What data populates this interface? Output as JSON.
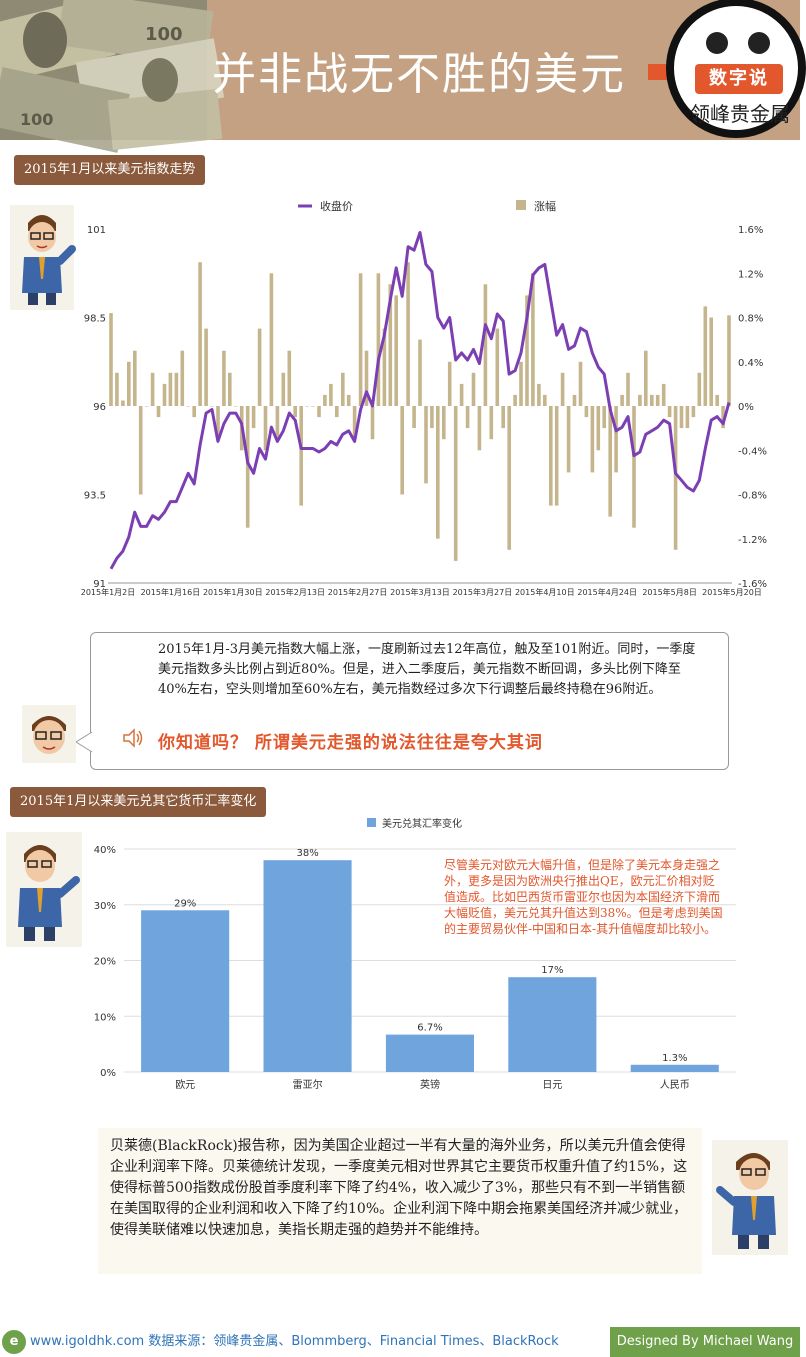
{
  "header": {
    "title": "并非战无不胜的美元",
    "badge": "数字说",
    "brand": "领峰贵金属"
  },
  "section1": {
    "label": "2015年1月以来美元指数走势"
  },
  "section2": {
    "label": "2015年1月以来美元兑其它货币汇率变化"
  },
  "note1": {
    "text": "2015年1月-3月美元指数大幅上涨，一度刷新过去12年高位，触及至101附近。同时，一季度美元指数多头比例占到近80%。但是，进入二季度后，美元指数不断回调，多头比例下降至40%左右，空头则增加至60%左右，美元指数经过多次下行调整后最终持稳在96附近。",
    "highlight": "你知道吗？ 所谓美元走强的说法往往是夸大其词"
  },
  "note2": {
    "text": "尽管美元对欧元大幅升值，但是除了美元本身走强之外，更多是因为欧洲央行推出QE，欧元汇价相对贬值造成。比如巴西货币雷亚尔也因为本国经济下滑而大幅贬值，美元兑其升值达到38%。但是考虑到美国的主要贸易伙伴-中国和日本-其升值幅度却比较小。"
  },
  "note3": {
    "text": "贝莱德(BlackRock)报告称，因为美国企业超过一半有大量的海外业务，所以美元升值会使得企业利润率下降。贝莱德统计发现，一季度美元相对世界其它主要货币权重升值了约15%，这使得标普500指数成份股首季度利率下降了约4%，收入减少了3%，那些只有不到一半销售额在美国取得的企业利润和收入下降了约10%。企业利润下降中期会拖累美国经济并减少就业，使得美联储难以快速加息，美指长期走强的趋势并不能维持。"
  },
  "footer": {
    "source": "www.igoldhk.com 数据来源：领峰贵金属、Blommberg、Financial Times、BlackRock",
    "credit": "Designed By Michael Wang"
  },
  "colors": {
    "line": "#7b3fb3",
    "bar": "#c5b58d",
    "bar2": "#6fa4dc",
    "tag": "#8b5a3c",
    "accent": "#e2572c"
  },
  "chart_data": [
    {
      "type": "line+bar",
      "legend": [
        "收盘价",
        "涨幅"
      ],
      "x_ticks": [
        "2015年1月2日",
        "2015年1月16日",
        "2015年1月30日",
        "2015年2月13日",
        "2015年2月27日",
        "2015年3月13日",
        "2015年3月27日",
        "2015年4月10日",
        "2015年4月24日",
        "2015年5月8日",
        "2015年5月20日"
      ],
      "left_axis": {
        "ticks": [
          "101",
          "98.5",
          "96",
          "93.5",
          "91"
        ],
        "ylim": [
          91,
          101
        ]
      },
      "right_axis": {
        "ticks": [
          "1.6%",
          "1.2%",
          "0.8%",
          "0.4%",
          "0%",
          "-0.4%",
          "-0.8%",
          "-1.2%",
          "-1.6%"
        ],
        "ylim": [
          -1.6,
          1.6
        ]
      },
      "close": [
        91.4,
        91.7,
        91.9,
        92.3,
        93.0,
        92.6,
        92.6,
        92.9,
        92.8,
        93.0,
        93.3,
        93.3,
        93.7,
        94.1,
        93.8,
        94.9,
        95.8,
        95.9,
        95.0,
        95.5,
        95.8,
        95.8,
        95.5,
        94.4,
        94.1,
        94.8,
        94.5,
        95.4,
        95.0,
        95.3,
        95.8,
        95.6,
        94.8,
        94.8,
        94.8,
        94.7,
        94.8,
        95.0,
        94.9,
        95.2,
        95.3,
        95.0,
        95.9,
        96.4,
        96.0,
        97.3,
        98.0,
        99.0,
        99.9,
        99.1,
        100.5,
        100.4,
        100.9,
        100.0,
        99.8,
        98.5,
        98.2,
        98.5,
        97.3,
        97.5,
        97.3,
        97.6,
        97.2,
        98.3,
        97.9,
        98.6,
        98.4,
        96.9,
        97.0,
        97.5,
        98.5,
        99.7,
        99.9,
        100.0,
        99.0,
        98.0,
        98.3,
        97.6,
        97.7,
        98.2,
        98.1,
        97.5,
        97.1,
        96.9,
        95.9,
        95.3,
        95.4,
        95.7,
        94.6,
        94.7,
        95.2,
        95.3,
        95.4,
        95.6,
        95.5,
        94.1,
        93.9,
        93.7,
        93.6,
        93.9,
        94.8,
        95.6,
        95.7,
        95.5,
        96.1
      ],
      "change": [
        0.84,
        0.3,
        0.05,
        0.4,
        0.5,
        -0.8,
        0.0,
        0.3,
        -0.1,
        0.2,
        0.3,
        0.3,
        0.5,
        0.0,
        -0.1,
        1.3,
        0.7,
        0.0,
        -0.3,
        0.5,
        0.3,
        0.0,
        -0.4,
        -1.1,
        -0.2,
        0.7,
        -0.4,
        1.2,
        -0.3,
        0.3,
        0.5,
        -0.1,
        -0.9,
        0.0,
        0.0,
        -0.1,
        0.1,
        0.2,
        -0.1,
        0.3,
        0.1,
        -0.3,
        1.2,
        0.5,
        -0.3,
        1.2,
        0.7,
        1.1,
        1.0,
        -0.8,
        1.3,
        -0.2,
        0.6,
        -0.7,
        -0.2,
        -1.2,
        -0.3,
        0.4,
        -1.4,
        0.2,
        -0.2,
        0.3,
        -0.4,
        1.1,
        -0.3,
        0.7,
        -0.2,
        -1.3,
        0.1,
        0.4,
        1.0,
        1.2,
        0.2,
        0.1,
        -0.9,
        -0.9,
        0.3,
        -0.6,
        0.1,
        0.4,
        -0.1,
        -0.6,
        -0.4,
        -0.2,
        -1.0,
        -0.6,
        0.1,
        0.3,
        -1.1,
        0.1,
        0.5,
        0.1,
        0.1,
        0.2,
        -0.1,
        -1.3,
        -0.2,
        -0.2,
        -0.1,
        0.3,
        0.9,
        0.8,
        0.1,
        -0.2,
        0.82
      ]
    },
    {
      "type": "bar",
      "legend": [
        "美元兑其汇率变化"
      ],
      "categories": [
        "欧元",
        "雷亚尔",
        "英镑",
        "日元",
        "人民币"
      ],
      "values": [
        29,
        38,
        6.7,
        17,
        1.3
      ],
      "data_labels": [
        "29%",
        "38%",
        "6.7%",
        "17%",
        "1.3%"
      ],
      "y_ticks": [
        "40%",
        "30%",
        "20%",
        "10%",
        "0%"
      ],
      "ylim": [
        0,
        40
      ]
    }
  ]
}
